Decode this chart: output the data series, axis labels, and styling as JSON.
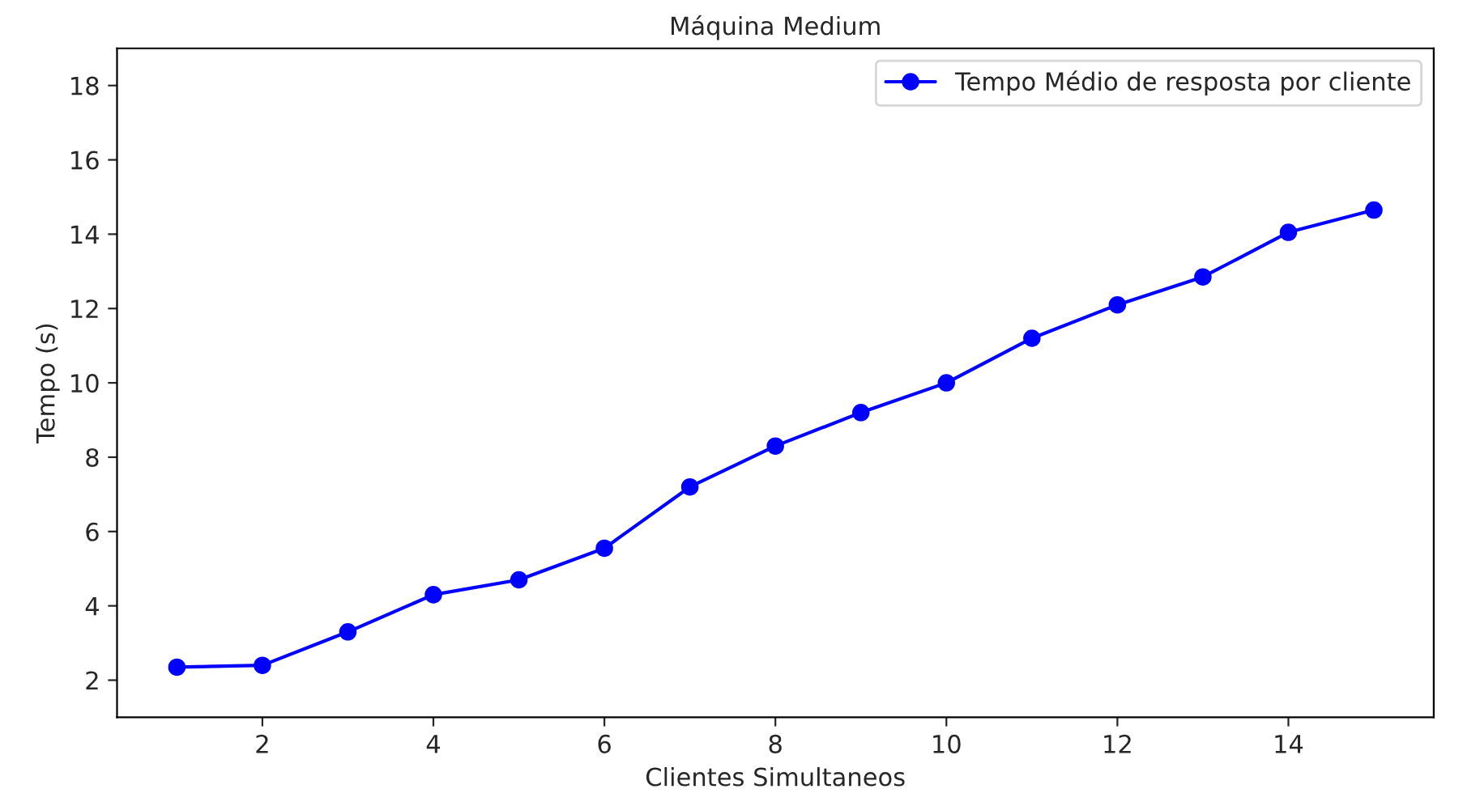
{
  "chart_data": {
    "type": "line",
    "title": "Máquina Medium",
    "xlabel": "Clientes Simultaneos",
    "ylabel": "Tempo (s)",
    "x": [
      1,
      2,
      3,
      4,
      5,
      6,
      7,
      8,
      9,
      10,
      11,
      12,
      13,
      14,
      15
    ],
    "series": [
      {
        "name": "Tempo Médio de resposta por cliente",
        "color": "#0000ff",
        "values": [
          2.35,
          2.4,
          3.3,
          4.3,
          4.7,
          5.55,
          7.2,
          8.3,
          9.2,
          10.0,
          11.2,
          12.1,
          12.85,
          14.05,
          14.65
        ]
      }
    ],
    "xlim": [
      0.3,
      15.7
    ],
    "ylim": [
      1,
      19
    ],
    "xticks": [
      2,
      4,
      6,
      8,
      10,
      12,
      14
    ],
    "yticks": [
      2,
      4,
      6,
      8,
      10,
      12,
      14,
      16,
      18
    ],
    "marker": "circle",
    "line_style": "solid",
    "legend": "top right",
    "grid": false
  }
}
